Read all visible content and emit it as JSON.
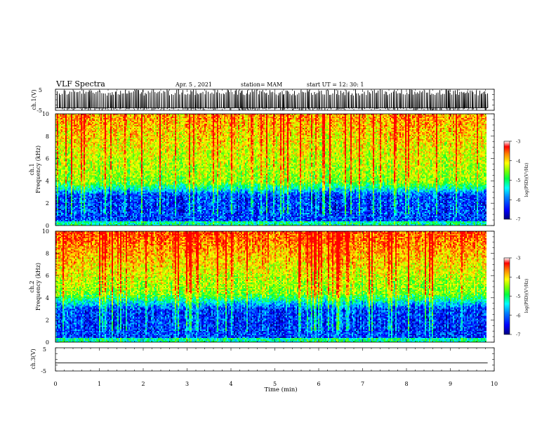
{
  "header": {
    "title": "VLF Spectra",
    "date": "Apr. 5 , 2021",
    "station": "station= MAM",
    "start": "start UT = 12: 30: 1"
  },
  "chart_data": [
    {
      "type": "line",
      "id": "ch1-waveform",
      "ylabel": "ch.1(V)",
      "ylim": [
        -5,
        5
      ],
      "yticks": [
        5,
        -5
      ],
      "xlim": [
        0,
        10
      ],
      "description_values": {
        "baseline_V": -3.8,
        "pulse_peak_V": 5.0,
        "pulse_spacing_min": 0.025,
        "end_min": 9.85
      }
    },
    {
      "type": "heatmap",
      "id": "ch1-spectrogram",
      "ylabel_line1": "ch.1",
      "ylabel_line2": "Frequency (kHz)",
      "ylim": [
        0,
        10
      ],
      "yticks": [
        0,
        2,
        4,
        6,
        8,
        10
      ],
      "xlim": [
        0,
        10
      ],
      "bands": {
        "low_kHz": [
          0,
          2.8
        ],
        "transition_kHz": [
          2.8,
          4
        ],
        "high_kHz": [
          4,
          10
        ]
      },
      "colorbar": {
        "label": "log(PSD)(V²/Hz)",
        "ticks": [
          -3,
          -4,
          -5,
          -6,
          -7
        ],
        "range": [
          -7,
          -3
        ]
      }
    },
    {
      "type": "heatmap",
      "id": "ch2-spectrogram",
      "ylabel_line1": "ch.2",
      "ylabel_line2": "Frequency (kHz)",
      "ylim": [
        0,
        10
      ],
      "yticks": [
        0,
        2,
        4,
        6,
        8,
        10
      ],
      "xlim": [
        0,
        10
      ],
      "bands": {
        "low_kHz": [
          0,
          3
        ],
        "transition_kHz": [
          3,
          4.5
        ],
        "high_kHz": [
          4.5,
          10
        ]
      },
      "colorbar": {
        "label": "log(PSD)(V²/Hz)",
        "ticks": [
          -3,
          -4,
          -5,
          -6,
          -7
        ],
        "range": [
          -7,
          -3
        ]
      }
    },
    {
      "type": "line",
      "id": "ch3-waveform",
      "ylabel": "ch.3(V)",
      "ylim": [
        -5,
        5
      ],
      "yticks": [
        5,
        -5
      ],
      "xlim": [
        0,
        10
      ],
      "series": [
        {
          "values_V": [
            -1.5,
            -1.5
          ]
        }
      ]
    }
  ],
  "xaxis": {
    "label": "Time (min)",
    "ticks": [
      0,
      1,
      2,
      3,
      4,
      5,
      6,
      7,
      8,
      9,
      10
    ],
    "data_end_min": 9.85
  },
  "colors": {
    "colormap": [
      "#000080",
      "#0000ff",
      "#0080ff",
      "#00ffff",
      "#00ff40",
      "#80ff00",
      "#ffff00",
      "#ff8000",
      "#ff0000"
    ],
    "trace": "#000000"
  }
}
